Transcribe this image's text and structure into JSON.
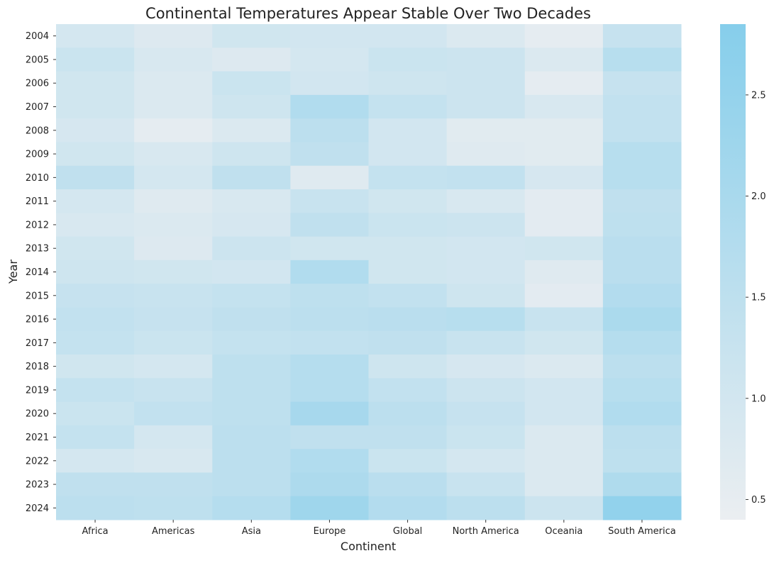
{
  "chart_data": {
    "type": "heatmap",
    "title": "Continental Temperatures Appear Stable Over Two Decades",
    "xlabel": "Continent",
    "ylabel": "Year",
    "x_categories": [
      "Africa",
      "Americas",
      "Asia",
      "Europe",
      "Global",
      "North America",
      "Oceania",
      "South America"
    ],
    "y_categories": [
      "2004",
      "2005",
      "2006",
      "2007",
      "2008",
      "2009",
      "2010",
      "2011",
      "2012",
      "2013",
      "2014",
      "2015",
      "2016",
      "2017",
      "2018",
      "2019",
      "2020",
      "2021",
      "2022",
      "2023",
      "2024"
    ],
    "values": [
      [
        0.95,
        0.75,
        1.05,
        1.0,
        1.0,
        0.8,
        0.55,
        1.3
      ],
      [
        1.2,
        0.85,
        0.75,
        0.95,
        1.2,
        1.15,
        0.8,
        1.65
      ],
      [
        1.05,
        0.8,
        1.2,
        1.0,
        1.1,
        1.15,
        0.55,
        1.3
      ],
      [
        1.05,
        0.8,
        1.1,
        1.8,
        1.35,
        1.15,
        0.85,
        1.4
      ],
      [
        0.9,
        0.55,
        0.8,
        1.55,
        1.0,
        0.65,
        0.65,
        1.4
      ],
      [
        1.05,
        0.85,
        1.1,
        1.45,
        1.0,
        0.7,
        0.65,
        1.65
      ],
      [
        1.45,
        0.95,
        1.45,
        0.7,
        1.35,
        1.4,
        0.9,
        1.65
      ],
      [
        0.95,
        0.7,
        0.85,
        1.25,
        1.05,
        0.85,
        0.6,
        1.45
      ],
      [
        0.85,
        0.8,
        0.9,
        1.45,
        1.2,
        1.15,
        0.6,
        1.5
      ],
      [
        1.05,
        0.75,
        1.15,
        1.05,
        1.05,
        1.0,
        1.05,
        1.6
      ],
      [
        1.1,
        1.05,
        1.0,
        1.8,
        1.05,
        1.0,
        0.7,
        1.6
      ],
      [
        1.3,
        1.25,
        1.35,
        1.5,
        1.4,
        1.1,
        0.6,
        1.75
      ],
      [
        1.4,
        1.3,
        1.45,
        1.55,
        1.6,
        1.65,
        1.25,
        1.95
      ],
      [
        1.35,
        1.2,
        1.35,
        1.4,
        1.45,
        1.25,
        1.05,
        1.7
      ],
      [
        1.05,
        0.95,
        1.5,
        1.7,
        1.1,
        0.9,
        0.8,
        1.55
      ],
      [
        1.35,
        1.25,
        1.5,
        1.7,
        1.4,
        1.15,
        1.0,
        1.65
      ],
      [
        1.2,
        1.4,
        1.5,
        2.05,
        1.55,
        1.3,
        1.0,
        1.8
      ],
      [
        1.35,
        0.95,
        1.55,
        1.45,
        1.45,
        1.2,
        0.8,
        1.55
      ],
      [
        0.95,
        0.85,
        1.55,
        1.8,
        1.2,
        0.95,
        0.8,
        1.5
      ],
      [
        1.45,
        1.45,
        1.55,
        1.9,
        1.6,
        1.25,
        0.8,
        1.85
      ],
      [
        1.55,
        1.5,
        1.7,
        2.25,
        1.75,
        1.55,
        1.15,
        2.55
      ]
    ],
    "colorbar": {
      "min": 0.4,
      "max": 2.85,
      "ticks": [
        "0.5",
        "1.0",
        "1.5",
        "2.0",
        "2.5"
      ],
      "low_color": "#ebeef1",
      "high_color": "#86ceeb"
    },
    "grid": false
  }
}
